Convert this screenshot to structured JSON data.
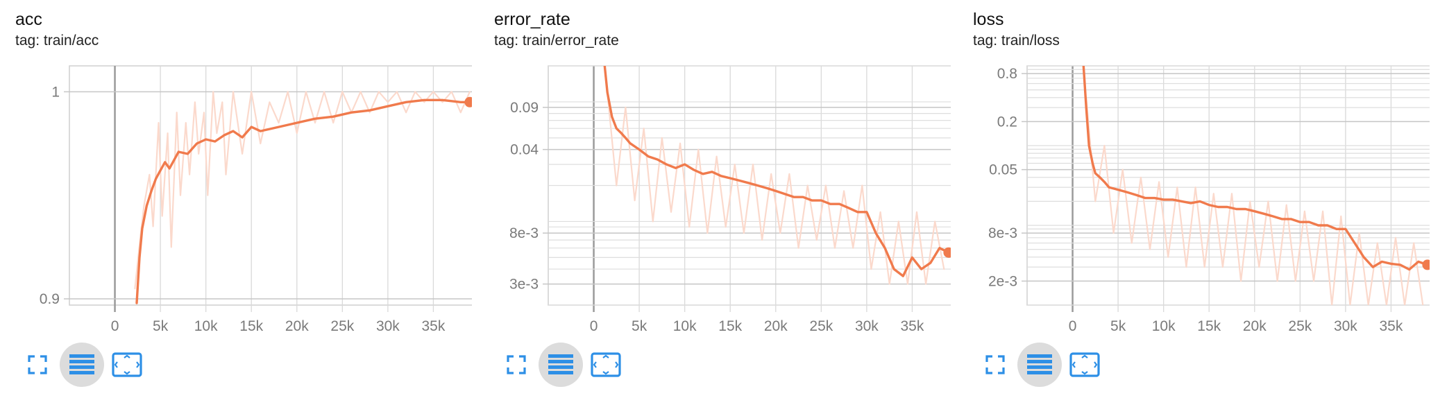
{
  "theme": {
    "accent": "#f07a4c",
    "raw_series": "#fbd9cc",
    "icon_blue": "#2d8fe6",
    "grid": "#d9d9d9"
  },
  "icons": [
    "fullscreen-icon",
    "toggle-log-scale-icon",
    "fit-domain-icon"
  ],
  "cards": [
    {
      "title": "acc",
      "tag": "tag: train/acc",
      "chart_data": {
        "type": "line",
        "title": "acc",
        "xlabel": "",
        "ylabel": "",
        "x_tick_labels": [
          "0",
          "5k",
          "10k",
          "15k",
          "20k",
          "25k",
          "30k",
          "35k"
        ],
        "x_ticks": [
          0,
          5000,
          10000,
          15000,
          20000,
          25000,
          30000,
          35000
        ],
        "y_tick_labels": [
          "0.9",
          "1"
        ],
        "y_ticks": [
          0.9,
          1.0
        ],
        "y_scale": "linear",
        "xlim": [
          -5000,
          40000
        ],
        "ylim": [
          0.897,
          1.0125
        ],
        "series": [
          {
            "role": "smoothed",
            "x": [
              2400,
              2700,
              3000,
              3500,
              4000,
              4500,
              5000,
              5500,
              6000,
              7000,
              8000,
              9000,
              10000,
              11000,
              12000,
              13000,
              14000,
              15000,
              16000,
              17000,
              18000,
              20000,
              22000,
              24000,
              26000,
              28000,
              30000,
              32000,
              34000,
              36000,
              38000,
              39000
            ],
            "y": [
              0.898,
              0.92,
              0.934,
              0.945,
              0.952,
              0.958,
              0.962,
              0.966,
              0.963,
              0.971,
              0.97,
              0.975,
              0.977,
              0.976,
              0.979,
              0.981,
              0.978,
              0.983,
              0.981,
              0.982,
              0.983,
              0.985,
              0.987,
              0.988,
              0.99,
              0.991,
              0.993,
              0.995,
              0.996,
              0.996,
              0.995,
              0.995
            ]
          },
          {
            "role": "raw",
            "x": [
              2200,
              2800,
              3200,
              3800,
              4200,
              4800,
              5200,
              5800,
              6200,
              6800,
              7200,
              7800,
              8200,
              8800,
              9200,
              9800,
              10200,
              10800,
              11200,
              11800,
              12200,
              13000,
              14000,
              15000,
              16000,
              17000,
              18000,
              19000,
              20000,
              21000,
              22000,
              23000,
              24000,
              25000,
              26000,
              27000,
              28000,
              29000,
              30000,
              31000,
              32000,
              33000,
              34000,
              35000,
              36000,
              37000,
              38000,
              39000
            ],
            "y": [
              0.905,
              0.93,
              0.945,
              0.96,
              0.935,
              0.985,
              0.94,
              0.98,
              0.925,
              0.99,
              0.95,
              0.985,
              0.96,
              0.995,
              0.97,
              0.99,
              0.95,
              1.0,
              0.98,
              0.995,
              0.96,
              1.0,
              0.97,
              1.0,
              0.975,
              0.995,
              0.985,
              1.0,
              0.98,
              1.0,
              0.985,
              1.0,
              0.985,
              1.0,
              0.99,
              1.0,
              0.99,
              1.0,
              0.995,
              1.0,
              0.99,
              1.0,
              0.995,
              1.0,
              0.995,
              1.0,
              0.99,
              1.0
            ]
          }
        ],
        "last_point": {
          "x": 39000,
          "y": 0.995
        }
      }
    },
    {
      "title": "error_rate",
      "tag": "tag: train/error_rate",
      "chart_data": {
        "type": "line",
        "title": "error_rate",
        "xlabel": "",
        "ylabel": "",
        "x_tick_labels": [
          "0",
          "5k",
          "10k",
          "15k",
          "20k",
          "25k",
          "30k",
          "35k"
        ],
        "x_ticks": [
          0,
          5000,
          10000,
          15000,
          20000,
          25000,
          30000,
          35000
        ],
        "y_tick_labels": [
          "3e-3",
          "8e-3",
          "0.04",
          "0.09"
        ],
        "y_ticks": [
          0.003,
          0.008,
          0.04,
          0.09
        ],
        "y_scale": "log",
        "xlim": [
          -5000,
          40000
        ],
        "ylim": [
          0.002,
          0.2
        ],
        "series": [
          {
            "role": "smoothed",
            "x": [
              1200,
              1500,
              2000,
              2500,
              3000,
              3500,
              4000,
              5000,
              6000,
              7000,
              8000,
              9000,
              10000,
              11000,
              12000,
              13000,
              14000,
              15000,
              16000,
              17000,
              18000,
              19000,
              20000,
              21000,
              22000,
              23000,
              24000,
              25000,
              26000,
              27000,
              28000,
              29000,
              30000,
              31000,
              32000,
              33000,
              34000,
              35000,
              36000,
              37000,
              38000,
              39000
            ],
            "y": [
              0.2,
              0.12,
              0.075,
              0.06,
              0.055,
              0.05,
              0.045,
              0.04,
              0.035,
              0.033,
              0.03,
              0.028,
              0.03,
              0.027,
              0.025,
              0.026,
              0.024,
              0.023,
              0.022,
              0.021,
              0.02,
              0.019,
              0.018,
              0.017,
              0.016,
              0.016,
              0.015,
              0.015,
              0.014,
              0.014,
              0.013,
              0.012,
              0.012,
              0.008,
              0.006,
              0.004,
              0.0035,
              0.005,
              0.004,
              0.0045,
              0.006,
              0.0055
            ]
          },
          {
            "role": "raw",
            "x": [
              1500,
              2500,
              3500,
              4500,
              5500,
              6500,
              7500,
              8500,
              9500,
              10500,
              11500,
              12500,
              13500,
              14500,
              15500,
              16500,
              17500,
              18500,
              19500,
              20500,
              21500,
              22500,
              23500,
              24500,
              25500,
              26500,
              27500,
              28500,
              29500,
              30500,
              31500,
              32500,
              33500,
              34500,
              35500,
              36500,
              37500,
              38500
            ],
            "y": [
              0.12,
              0.02,
              0.09,
              0.015,
              0.06,
              0.01,
              0.05,
              0.012,
              0.045,
              0.009,
              0.04,
              0.008,
              0.035,
              0.009,
              0.03,
              0.008,
              0.03,
              0.007,
              0.025,
              0.008,
              0.025,
              0.006,
              0.02,
              0.007,
              0.02,
              0.006,
              0.018,
              0.006,
              0.02,
              0.004,
              0.012,
              0.003,
              0.01,
              0.003,
              0.012,
              0.003,
              0.01,
              0.004
            ]
          }
        ],
        "last_point": {
          "x": 39000,
          "y": 0.0055
        }
      }
    },
    {
      "title": "loss",
      "tag": "tag: train/loss",
      "chart_data": {
        "type": "line",
        "title": "loss",
        "xlabel": "",
        "ylabel": "",
        "x_tick_labels": [
          "0",
          "5k",
          "10k",
          "15k",
          "20k",
          "25k",
          "30k",
          "35k"
        ],
        "x_ticks": [
          0,
          5000,
          10000,
          15000,
          20000,
          25000,
          30000,
          35000
        ],
        "y_tick_labels": [
          "2e-3",
          "8e-3",
          "0.05",
          "0.2",
          "0.8"
        ],
        "y_ticks": [
          0.002,
          0.008,
          0.05,
          0.2,
          0.8
        ],
        "y_scale": "log",
        "xlim": [
          -5000,
          40000
        ],
        "ylim": [
          0.001,
          1.0
        ],
        "series": [
          {
            "role": "smoothed",
            "x": [
              1200,
              1500,
              1800,
              2200,
              2500,
              3000,
              3500,
              4000,
              5000,
              6000,
              7000,
              8000,
              9000,
              10000,
              11000,
              12000,
              13000,
              14000,
              15000,
              16000,
              17000,
              18000,
              19000,
              20000,
              21000,
              22000,
              23000,
              24000,
              25000,
              26000,
              27000,
              28000,
              29000,
              30000,
              31000,
              32000,
              33000,
              34000,
              35000,
              36000,
              37000,
              38000,
              39000
            ],
            "y": [
              1.0,
              0.3,
              0.1,
              0.06,
              0.045,
              0.04,
              0.035,
              0.03,
              0.028,
              0.026,
              0.024,
              0.022,
              0.022,
              0.021,
              0.021,
              0.02,
              0.019,
              0.02,
              0.018,
              0.017,
              0.017,
              0.016,
              0.016,
              0.015,
              0.014,
              0.013,
              0.012,
              0.012,
              0.011,
              0.011,
              0.01,
              0.01,
              0.009,
              0.009,
              0.006,
              0.004,
              0.003,
              0.0035,
              0.0033,
              0.0032,
              0.0028,
              0.0035,
              0.0032
            ]
          },
          {
            "role": "raw",
            "x": [
              1500,
              2500,
              3500,
              4500,
              5500,
              6500,
              7500,
              8500,
              9500,
              10500,
              11500,
              12500,
              13500,
              14500,
              15500,
              16500,
              17500,
              18500,
              19500,
              20500,
              21500,
              22500,
              23500,
              24500,
              25500,
              26500,
              27500,
              28500,
              29500,
              30500,
              31500,
              32500,
              33500,
              34500,
              35500,
              36500,
              37500,
              38500
            ],
            "y": [
              0.4,
              0.02,
              0.1,
              0.008,
              0.05,
              0.006,
              0.04,
              0.005,
              0.035,
              0.004,
              0.03,
              0.003,
              0.03,
              0.003,
              0.025,
              0.003,
              0.025,
              0.002,
              0.02,
              0.003,
              0.02,
              0.002,
              0.018,
              0.002,
              0.015,
              0.002,
              0.015,
              0.001,
              0.013,
              0.001,
              0.008,
              0.001,
              0.006,
              0.001,
              0.007,
              0.001,
              0.006,
              0.001
            ]
          }
        ],
        "last_point": {
          "x": 39000,
          "y": 0.0032
        }
      }
    }
  ]
}
